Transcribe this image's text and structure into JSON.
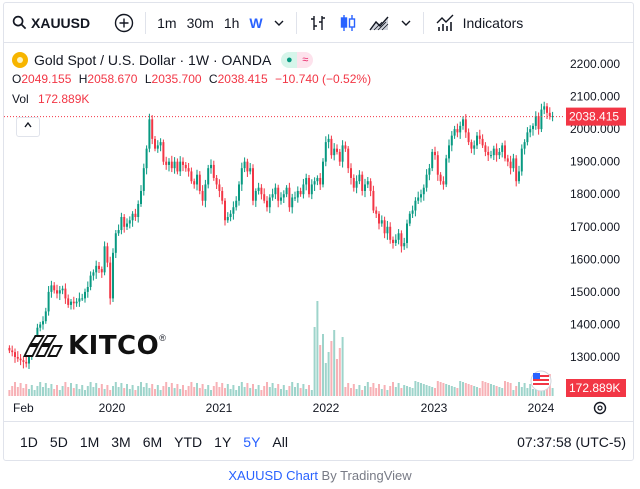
{
  "toolbar": {
    "symbol": "XAUUSD",
    "intervals": [
      "1m",
      "30m",
      "1h",
      "W"
    ],
    "active_interval": "W",
    "indicators_label": "Indicators"
  },
  "legend": {
    "title": "Gold Spot / U.S. Dollar · 1W · OANDA",
    "open_label": "O",
    "open": "2049.155",
    "high_label": "H",
    "high": "2058.670",
    "low_label": "L",
    "low": "2035.700",
    "close_label": "C",
    "close": "2038.415",
    "change": "−10.740 (−0.52%)",
    "volume_label": "Vol",
    "volume": "172.889K"
  },
  "logo": {
    "text": "KITCO",
    "mark": "®"
  },
  "ranges": [
    "1D",
    "5D",
    "1M",
    "3M",
    "6M",
    "YTD",
    "1Y",
    "5Y",
    "All"
  ],
  "active_range": "5Y",
  "clock": "07:37:58 (UTC-5)",
  "attribution": {
    "link": "XAUUSD Chart",
    "by": " By TradingView"
  },
  "colors": {
    "up": "#089981",
    "down": "#f23645",
    "accent": "#2962ff",
    "up_volume": "#9ed4cb",
    "down_volume": "#f7b1b6"
  },
  "chart_data": {
    "type": "candlestick",
    "price_axis": {
      "ticks": [
        2200,
        2100,
        2000,
        1900,
        1800,
        1700,
        1600,
        1500,
        1400,
        1300
      ],
      "tick_labels": [
        "2200.000",
        "2100.000",
        "2000.000",
        "1900.000",
        "1800.000",
        "1700.000",
        "1600.000",
        "1500.000",
        "1400.000",
        "1300.000"
      ],
      "range": [
        1180,
        2240
      ]
    },
    "time_axis": {
      "labels": [
        "Feb",
        "2020",
        "2021",
        "2022",
        "2023",
        "2024"
      ],
      "start": "2019-02",
      "end": "2024-02"
    },
    "last_price": "2038.415",
    "last_volume": "172.889K",
    "series_close": [
      1320,
      1315,
      1300,
      1295,
      1290,
      1285,
      1280,
      1300,
      1330,
      1350,
      1390,
      1400,
      1410,
      1440,
      1500,
      1520,
      1505,
      1495,
      1505,
      1510,
      1480,
      1460,
      1470,
      1465,
      1470,
      1480,
      1480,
      1500,
      1515,
      1550,
      1560,
      1580,
      1570,
      1560,
      1640,
      1590,
      1480,
      1620,
      1680,
      1690,
      1730,
      1700,
      1710,
      1720,
      1740,
      1730,
      1770,
      1810,
      1880,
      1940,
      2030,
      1970,
      1940,
      1950,
      1960,
      1900,
      1890,
      1900,
      1880,
      1900,
      1870,
      1900,
      1890,
      1880,
      1870,
      1840,
      1830,
      1860,
      1810,
      1780,
      1830,
      1880,
      1890,
      1850,
      1830,
      1810,
      1780,
      1720,
      1730,
      1740,
      1760,
      1780,
      1830,
      1880,
      1900,
      1870,
      1880,
      1780,
      1810,
      1820,
      1800,
      1780,
      1760,
      1790,
      1800,
      1820,
      1780,
      1790,
      1800,
      1820,
      1760,
      1790,
      1790,
      1810,
      1800,
      1830,
      1850,
      1800,
      1830,
      1840,
      1850,
      1830,
      1900,
      1960,
      1970,
      1920,
      1940,
      1930,
      1900,
      1950,
      1940,
      1880,
      1850,
      1820,
      1840,
      1860,
      1810,
      1830,
      1840,
      1810,
      1750,
      1740,
      1710,
      1720,
      1680,
      1700,
      1660,
      1650,
      1660,
      1680,
      1640,
      1650,
      1710,
      1740,
      1750,
      1780,
      1790,
      1800,
      1820,
      1860,
      1880,
      1930,
      1920,
      1860,
      1840,
      1830,
      1910,
      1950,
      1980,
      2000,
      1990,
      2010,
      2030,
      1990,
      1960,
      1940,
      1950,
      1980,
      1970,
      1950,
      1930,
      1920,
      1920,
      1940,
      1920,
      1930,
      1950,
      1910,
      1900,
      1880,
      1910,
      1840,
      1870,
      1940,
      1960,
      1990,
      2000,
      2010,
      2040,
      2000,
      2060,
      2070,
      2050,
      2040,
      2040
    ]
  }
}
